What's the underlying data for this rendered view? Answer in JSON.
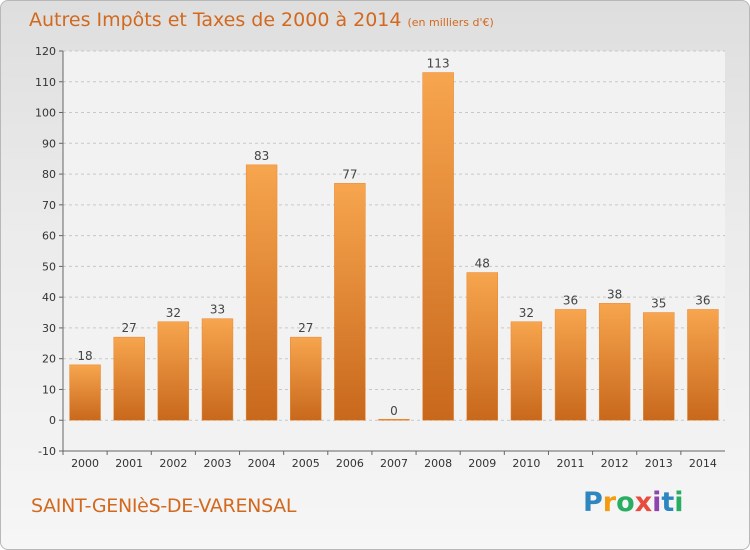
{
  "header": {
    "title": "Autres Impôts et Taxes de 2000 à 2014",
    "unit": "(en milliers d'€)"
  },
  "footer": {
    "place": "SAINT-GENIèS-DE-VARENSAL",
    "logo": {
      "letters": [
        "P",
        "r",
        "o",
        "x",
        "i",
        "t",
        "i"
      ],
      "colors": [
        "#2e86c1",
        "#f39c12",
        "#27ae60",
        "#e74c3c",
        "#8e44ad",
        "#2e86c1",
        "#27ae60"
      ]
    }
  },
  "chart_data": {
    "type": "bar",
    "categories": [
      "2000",
      "2001",
      "2002",
      "2003",
      "2004",
      "2005",
      "2006",
      "2007",
      "2008",
      "2009",
      "2010",
      "2011",
      "2012",
      "2013",
      "2014"
    ],
    "values": [
      18,
      27,
      32,
      33,
      83,
      27,
      77,
      0,
      113,
      48,
      32,
      36,
      38,
      35,
      36
    ],
    "ylim": [
      -10,
      120
    ],
    "yticks": [
      -10,
      0,
      10,
      20,
      30,
      40,
      50,
      60,
      70,
      80,
      90,
      100,
      110,
      120
    ],
    "grid": "horizontal-dashed",
    "bar_color": "#e8862e",
    "bar_color_light": "#f7a54e",
    "bar_color_dark": "#c8681c"
  }
}
